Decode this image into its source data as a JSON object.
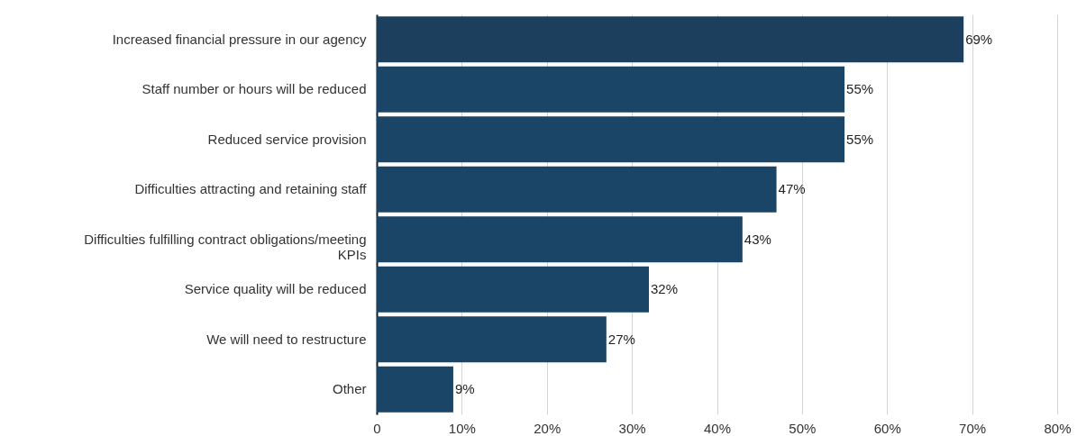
{
  "chart_data": {
    "type": "bar",
    "orientation": "horizontal",
    "categories": [
      "Increased financial pressure in our agency",
      "Staff number or hours will be reduced",
      "Reduced service provision",
      "Difficulties attracting and retaining staff",
      "Difficulties fulfilling contract obligations/meeting KPIs",
      "Service quality will be reduced",
      "We will need to restructure",
      "Other"
    ],
    "values": [
      69,
      55,
      55,
      47,
      43,
      32,
      27,
      9
    ],
    "colors": [
      "#1b3f5c",
      "#1a4566",
      "#1a4566",
      "#1a4566",
      "#1a4566",
      "#1a4566",
      "#1a4566",
      "#1a4566"
    ],
    "value_labels": [
      "69%",
      "55%",
      "55%",
      "47%",
      "43%",
      "32%",
      "27%",
      "9%"
    ],
    "xlim": [
      0,
      80
    ],
    "xticks": [
      0,
      {
        "value": 10,
        "label": "10%"
      },
      {
        "value": 20,
        "label": "20%"
      },
      {
        "value": 30,
        "label": "30%"
      },
      {
        "value": 40,
        "label": "40%"
      },
      {
        "value": 50,
        "label": "50%"
      },
      {
        "value": 60,
        "label": "60%"
      },
      {
        "value": 70,
        "label": "70%"
      },
      {
        "value": 80,
        "label": "80%"
      }
    ],
    "grid": "x"
  }
}
